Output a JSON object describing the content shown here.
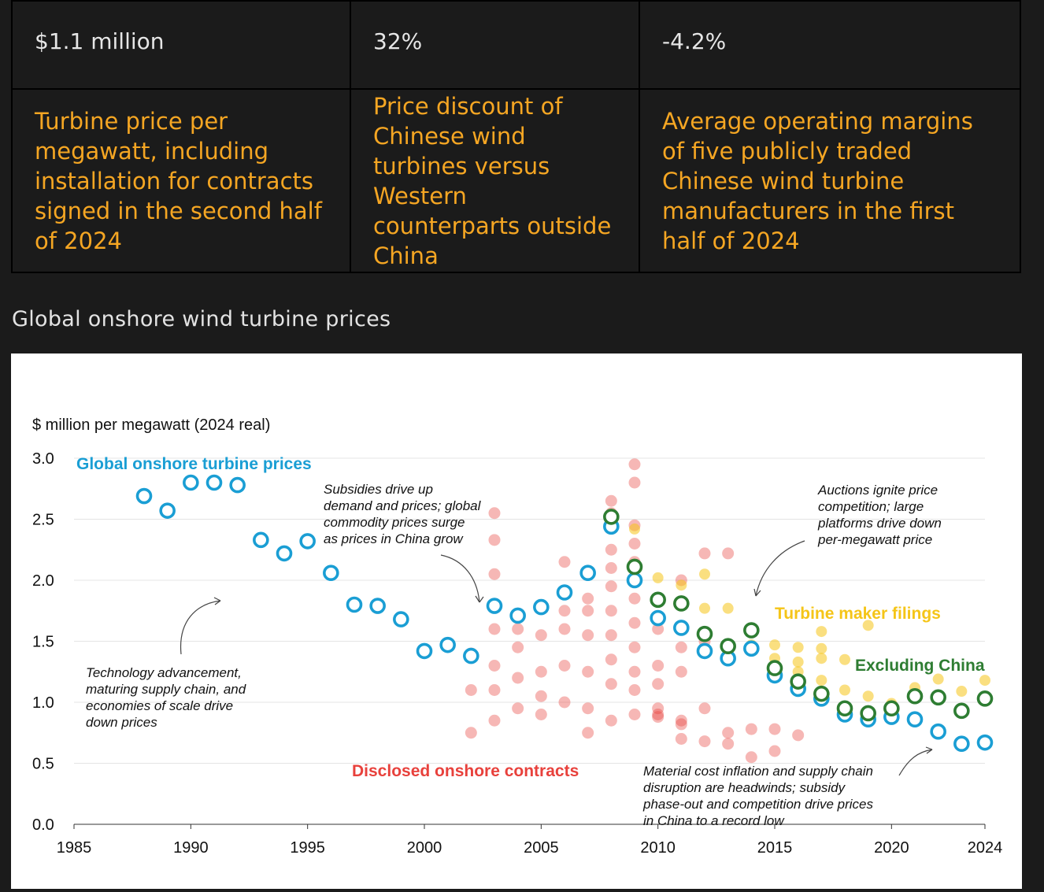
{
  "stats": [
    {
      "value": "$1.1 million",
      "description": "Turbine price per megawatt, including installation for contracts signed in the second half of 2024"
    },
    {
      "value": "32%",
      "description": "Price discount of Chinese wind turbines versus Western counterparts outside China"
    },
    {
      "value": "-4.2%",
      "description": "Average operating margins of five publicly traded Chinese wind turbine manufacturers in the first half of 2024"
    }
  ],
  "section_title": "Global onshore wind turbine prices",
  "chart_data": {
    "type": "scatter",
    "ylabel": "$ million per megawatt (2024 real)",
    "xlim": [
      1985,
      2024
    ],
    "ylim": [
      0,
      3.0
    ],
    "x_ticks": [
      1985,
      1990,
      1995,
      2000,
      2005,
      2010,
      2015,
      2020,
      2024
    ],
    "y_ticks": [
      "0.0",
      "0.5",
      "1.0",
      "1.5",
      "2.0",
      "2.5",
      "3.0"
    ],
    "grid": true,
    "colors": {
      "global": "#1a9ed4",
      "contracts": "#e8413c",
      "filings": "#f5c518",
      "excl_china": "#2e7d32",
      "axis": "#333333",
      "grid": "#e4e4e4"
    },
    "series": [
      {
        "name": "Global onshore turbine prices",
        "key": "global",
        "style": "ring",
        "points": [
          [
            1988,
            2.69
          ],
          [
            1989,
            2.57
          ],
          [
            1990,
            2.8
          ],
          [
            1991,
            2.8
          ],
          [
            1992,
            2.78
          ],
          [
            1993,
            2.33
          ],
          [
            1994,
            2.22
          ],
          [
            1995,
            2.32
          ],
          [
            1996,
            2.06
          ],
          [
            1997,
            1.8
          ],
          [
            1998,
            1.79
          ],
          [
            1999,
            1.68
          ],
          [
            2000,
            1.42
          ],
          [
            2001,
            1.47
          ],
          [
            2002,
            1.38
          ],
          [
            2003,
            1.79
          ],
          [
            2004,
            1.71
          ],
          [
            2005,
            1.78
          ],
          [
            2006,
            1.9
          ],
          [
            2007,
            2.06
          ],
          [
            2008,
            2.44
          ],
          [
            2009,
            2.0
          ],
          [
            2010,
            1.69
          ],
          [
            2011,
            1.61
          ],
          [
            2012,
            1.42
          ],
          [
            2013,
            1.36
          ],
          [
            2014,
            1.44
          ],
          [
            2015,
            1.22
          ],
          [
            2016,
            1.11
          ],
          [
            2017,
            1.03
          ],
          [
            2018,
            0.9
          ],
          [
            2019,
            0.86
          ],
          [
            2020,
            0.88
          ],
          [
            2021,
            0.86
          ],
          [
            2022,
            0.76
          ],
          [
            2023,
            0.66
          ],
          [
            2024,
            0.67
          ]
        ]
      },
      {
        "name": "Excluding China",
        "key": "excl_china",
        "style": "ring",
        "points": [
          [
            2008,
            2.52
          ],
          [
            2009,
            2.11
          ],
          [
            2010,
            1.84
          ],
          [
            2011,
            1.81
          ],
          [
            2012,
            1.56
          ],
          [
            2013,
            1.46
          ],
          [
            2014,
            1.59
          ],
          [
            2015,
            1.28
          ],
          [
            2016,
            1.17
          ],
          [
            2017,
            1.07
          ],
          [
            2018,
            0.95
          ],
          [
            2019,
            0.91
          ],
          [
            2020,
            0.95
          ],
          [
            2021,
            1.05
          ],
          [
            2022,
            1.04
          ],
          [
            2023,
            0.93
          ],
          [
            2024,
            1.03
          ]
        ]
      },
      {
        "name": "Turbine maker filings",
        "key": "filings",
        "style": "dot",
        "points": [
          [
            2009,
            2.42
          ],
          [
            2010,
            2.02
          ],
          [
            2011,
            1.96
          ],
          [
            2012,
            1.77
          ],
          [
            2012,
            2.05
          ],
          [
            2013,
            1.77
          ],
          [
            2014,
            1.47
          ],
          [
            2015,
            1.47
          ],
          [
            2015,
            1.36
          ],
          [
            2016,
            1.45
          ],
          [
            2016,
            1.33
          ],
          [
            2016,
            1.25
          ],
          [
            2017,
            1.58
          ],
          [
            2017,
            1.44
          ],
          [
            2017,
            1.36
          ],
          [
            2017,
            1.18
          ],
          [
            2018,
            1.35
          ],
          [
            2018,
            1.1
          ],
          [
            2019,
            1.63
          ],
          [
            2019,
            1.05
          ],
          [
            2020,
            0.99
          ],
          [
            2021,
            1.12
          ],
          [
            2022,
            1.19
          ],
          [
            2023,
            1.09
          ],
          [
            2024,
            1.18
          ]
        ]
      },
      {
        "name": "Disclosed onshore contracts",
        "key": "contracts",
        "style": "filled",
        "points": [
          [
            2003,
            2.55
          ],
          [
            2003,
            2.33
          ],
          [
            2003,
            2.05
          ],
          [
            2002,
            1.4
          ],
          [
            2003,
            1.3
          ],
          [
            2003,
            1.1
          ],
          [
            2004,
            1.2
          ],
          [
            2004,
            0.95
          ],
          [
            2005,
            1.55
          ],
          [
            2005,
            1.25
          ],
          [
            2006,
            1.9
          ],
          [
            2006,
            1.6
          ],
          [
            2006,
            1.3
          ],
          [
            2006,
            1.0
          ],
          [
            2007,
            1.85
          ],
          [
            2007,
            1.55
          ],
          [
            2007,
            1.25
          ],
          [
            2007,
            0.95
          ],
          [
            2008,
            2.65
          ],
          [
            2008,
            2.25
          ],
          [
            2008,
            1.95
          ],
          [
            2008,
            1.75
          ],
          [
            2008,
            1.55
          ],
          [
            2008,
            1.15
          ],
          [
            2008,
            0.85
          ],
          [
            2009,
            2.95
          ],
          [
            2009,
            2.8
          ],
          [
            2009,
            2.45
          ],
          [
            2009,
            2.15
          ],
          [
            2009,
            1.85
          ],
          [
            2009,
            1.45
          ],
          [
            2009,
            1.1
          ],
          [
            2009,
            0.9
          ],
          [
            2010,
            1.6
          ],
          [
            2010,
            1.3
          ],
          [
            2010,
            0.95
          ],
          [
            2011,
            2.0
          ],
          [
            2011,
            1.25
          ],
          [
            2011,
            0.85
          ],
          [
            2011,
            0.7
          ],
          [
            2012,
            2.22
          ],
          [
            2012,
            1.5
          ],
          [
            2012,
            0.95
          ],
          [
            2013,
            2.22
          ],
          [
            2013,
            0.75
          ],
          [
            2002,
            1.1
          ],
          [
            2003,
            0.85
          ],
          [
            2004,
            1.45
          ],
          [
            2005,
            1.05
          ],
          [
            2006,
            2.15
          ],
          [
            2007,
            1.75
          ],
          [
            2008,
            2.55
          ],
          [
            2009,
            1.65
          ],
          [
            2010,
            1.15
          ],
          [
            2011,
            1.45
          ],
          [
            2014,
            0.78
          ],
          [
            2015,
            0.78
          ],
          [
            2016,
            0.73
          ],
          [
            2015,
            0.6
          ],
          [
            2014,
            0.55
          ],
          [
            2013,
            0.66
          ],
          [
            2005,
            0.9
          ],
          [
            2004,
            1.6
          ],
          [
            2003,
            1.6
          ],
          [
            2006,
            1.75
          ],
          [
            2008,
            1.35
          ],
          [
            2009,
            1.25
          ],
          [
            2010,
            0.9
          ],
          [
            2010,
            0.88
          ],
          [
            2011,
            0.82
          ],
          [
            2012,
            0.68
          ],
          [
            2002,
            0.75
          ],
          [
            2007,
            0.75
          ],
          [
            2008,
            2.1
          ],
          [
            2009,
            2.3
          ]
        ]
      }
    ],
    "labels": {
      "global": "Global onshore turbine prices",
      "contracts": "Disclosed onshore contracts",
      "filings": "Turbine maker filings",
      "excl_china": "Excluding China"
    },
    "annotations": [
      {
        "id": "tech",
        "lines": [
          "Technology advancement,",
          "maturing supply chain, and",
          "economies of scale drive",
          "down prices"
        ]
      },
      {
        "id": "subsidies",
        "lines": [
          "Subsidies drive up",
          "demand and prices; global",
          "commodity prices surge",
          "as prices in China grow"
        ]
      },
      {
        "id": "auctions",
        "lines": [
          "Auctions ignite price",
          "competition; large",
          "platforms drive down",
          "per-megawatt price"
        ]
      },
      {
        "id": "material",
        "lines": [
          "Material cost inflation and supply chain",
          "disruption are headwinds; subsidy",
          "phase-out and competition drive prices",
          "in China to a record low"
        ]
      }
    ]
  }
}
